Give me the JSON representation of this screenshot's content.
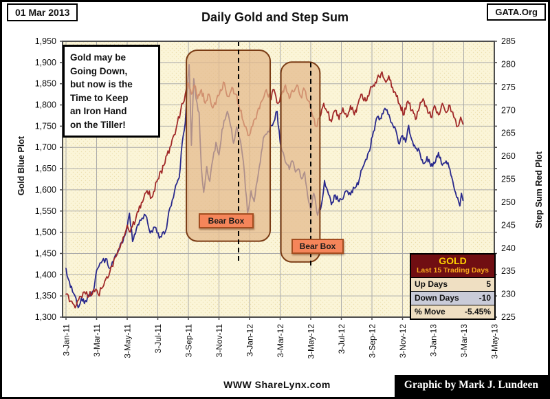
{
  "header": {
    "date_box": "01 Mar 2013",
    "title": "Daily Gold and Step Sum",
    "org_box": "GATA.Org"
  },
  "annotation_note": "Gold may be\nGoing Down,\nbut now is the\nTime to Keep\nan Iron Hand\non the Tiller!",
  "footer": {
    "site": "WWW ShareLynx.com",
    "credit": "Graphic by Mark J. Lundeen"
  },
  "stats_table": {
    "title": "GOLD",
    "subtitle": "Last 15 Trading Days",
    "rows": [
      {
        "label": "Up Days",
        "value": "5"
      },
      {
        "label": "Down Days",
        "value": "-10"
      },
      {
        "label": "% Move",
        "value": "-5.45%"
      }
    ]
  },
  "chart_data": {
    "type": "line",
    "title": "Daily Gold and Step Sum",
    "grid": true,
    "plot_bg": "#FBF5D8",
    "grid_color": "#ABABAB",
    "x_tick_labels": [
      "3-Jan-11",
      "3-Mar-11",
      "3-May-11",
      "3-Jul-11",
      "3-Sep-11",
      "3-Nov-11",
      "3-Jan-12",
      "3-Mar-12",
      "3-May-12",
      "3-Jul-12",
      "3-Sep-12",
      "3-Nov-12",
      "3-Jan-13",
      "3-Mar-13",
      "3-May-13"
    ],
    "left_axis": {
      "label": "Gold Blue Plot",
      "min": 1300,
      "max": 1950,
      "step": 50,
      "tick_labels": [
        "1,300",
        "1,350",
        "1,400",
        "1,450",
        "1,500",
        "1,550",
        "1,600",
        "1,650",
        "1,700",
        "1,750",
        "1,800",
        "1,850",
        "1,900",
        "1,950"
      ]
    },
    "right_axis": {
      "label": "Step Sum Red Plot",
      "min": 225,
      "max": 285,
      "step": 5,
      "tick_labels": [
        "225",
        "230",
        "235",
        "240",
        "245",
        "250",
        "255",
        "260",
        "265",
        "270",
        "275",
        "280",
        "285"
      ]
    },
    "series": [
      {
        "name": "Gold (Blue Plot)",
        "axis": "left",
        "color": "#28288C",
        "points": [
          [
            0.0,
            1415
          ],
          [
            0.15,
            1390
          ],
          [
            0.5,
            1356
          ],
          [
            0.8,
            1322
          ],
          [
            1.0,
            1345
          ],
          [
            1.2,
            1332
          ],
          [
            1.5,
            1352
          ],
          [
            1.8,
            1362
          ],
          [
            2.0,
            1410
          ],
          [
            2.3,
            1428
          ],
          [
            2.6,
            1438
          ],
          [
            2.8,
            1416
          ],
          [
            3.1,
            1432
          ],
          [
            3.4,
            1458
          ],
          [
            3.7,
            1475
          ],
          [
            4.0,
            1512
          ],
          [
            4.15,
            1545
          ],
          [
            4.35,
            1478
          ],
          [
            4.6,
            1508
          ],
          [
            4.9,
            1528
          ],
          [
            5.2,
            1540
          ],
          [
            5.5,
            1498
          ],
          [
            5.8,
            1512
          ],
          [
            6.1,
            1486
          ],
          [
            6.5,
            1502
          ],
          [
            6.8,
            1558
          ],
          [
            7.1,
            1598
          ],
          [
            7.4,
            1628
          ],
          [
            7.6,
            1712
          ],
          [
            7.8,
            1758
          ],
          [
            7.9,
            1826
          ],
          [
            8.05,
            1895
          ],
          [
            8.2,
            1705
          ],
          [
            8.35,
            1862
          ],
          [
            8.5,
            1815
          ],
          [
            8.7,
            1782
          ],
          [
            8.85,
            1652
          ],
          [
            9.0,
            1594
          ],
          [
            9.2,
            1655
          ],
          [
            9.4,
            1620
          ],
          [
            9.6,
            1672
          ],
          [
            9.8,
            1712
          ],
          [
            10.0,
            1682
          ],
          [
            10.2,
            1742
          ],
          [
            10.4,
            1765
          ],
          [
            10.55,
            1785
          ],
          [
            10.75,
            1752
          ],
          [
            10.95,
            1710
          ],
          [
            11.15,
            1748
          ],
          [
            11.35,
            1722
          ],
          [
            11.6,
            1665
          ],
          [
            11.87,
            1545
          ],
          [
            12.1,
            1598
          ],
          [
            12.3,
            1572
          ],
          [
            12.5,
            1620
          ],
          [
            12.7,
            1665
          ],
          [
            12.9,
            1722
          ],
          [
            13.2,
            1738
          ],
          [
            13.5,
            1752
          ],
          [
            13.8,
            1785
          ],
          [
            14.0,
            1712
          ],
          [
            14.2,
            1688
          ],
          [
            14.4,
            1662
          ],
          [
            14.6,
            1648
          ],
          [
            14.8,
            1668
          ],
          [
            15.0,
            1642
          ],
          [
            15.2,
            1650
          ],
          [
            15.4,
            1626
          ],
          [
            15.6,
            1642
          ],
          [
            15.8,
            1585
          ],
          [
            16.0,
            1552
          ],
          [
            16.2,
            1592
          ],
          [
            16.45,
            1540
          ],
          [
            16.7,
            1565
          ],
          [
            16.9,
            1622
          ],
          [
            17.1,
            1598
          ],
          [
            17.35,
            1565
          ],
          [
            17.6,
            1588
          ],
          [
            17.85,
            1572
          ],
          [
            18.1,
            1578
          ],
          [
            18.35,
            1598
          ],
          [
            18.6,
            1588
          ],
          [
            18.85,
            1604
          ],
          [
            19.1,
            1612
          ],
          [
            19.35,
            1648
          ],
          [
            19.6,
            1672
          ],
          [
            19.85,
            1692
          ],
          [
            20.1,
            1738
          ],
          [
            20.35,
            1772
          ],
          [
            20.6,
            1768
          ],
          [
            20.85,
            1792
          ],
          [
            21.05,
            1778
          ],
          [
            21.3,
            1758
          ],
          [
            21.55,
            1742
          ],
          [
            21.8,
            1708
          ],
          [
            22.0,
            1728
          ],
          [
            22.2,
            1712
          ],
          [
            22.4,
            1752
          ],
          [
            22.6,
            1718
          ],
          [
            22.85,
            1698
          ],
          [
            23.1,
            1692
          ],
          [
            23.35,
            1662
          ],
          [
            23.6,
            1678
          ],
          [
            23.85,
            1655
          ],
          [
            24.1,
            1662
          ],
          [
            24.35,
            1688
          ],
          [
            24.6,
            1658
          ],
          [
            24.85,
            1668
          ],
          [
            25.1,
            1648
          ],
          [
            25.35,
            1608
          ],
          [
            25.6,
            1582
          ],
          [
            25.75,
            1562
          ],
          [
            25.85,
            1592
          ],
          [
            25.95,
            1575
          ]
        ]
      },
      {
        "name": "Step Sum (Red Plot)",
        "axis": "right",
        "color": "#A02828",
        "points": [
          [
            0.0,
            230
          ],
          [
            0.3,
            228.5
          ],
          [
            0.6,
            227
          ],
          [
            0.9,
            229.5
          ],
          [
            1.2,
            230.5
          ],
          [
            1.5,
            229.5
          ],
          [
            1.8,
            231
          ],
          [
            2.1,
            230
          ],
          [
            2.4,
            231.5
          ],
          [
            2.8,
            234
          ],
          [
            3.2,
            238
          ],
          [
            3.6,
            241
          ],
          [
            4.0,
            245
          ],
          [
            4.2,
            243.5
          ],
          [
            4.6,
            247
          ],
          [
            5.0,
            250
          ],
          [
            5.3,
            252.5
          ],
          [
            5.6,
            251
          ],
          [
            6.0,
            255
          ],
          [
            6.4,
            258
          ],
          [
            6.8,
            262
          ],
          [
            7.2,
            266
          ],
          [
            7.5,
            270
          ],
          [
            7.8,
            273.5
          ],
          [
            8.0,
            276
          ],
          [
            8.2,
            273.5
          ],
          [
            8.4,
            275.5
          ],
          [
            8.6,
            272.5
          ],
          [
            8.85,
            274.5
          ],
          [
            9.1,
            271.5
          ],
          [
            9.35,
            273.5
          ],
          [
            9.6,
            270.5
          ],
          [
            9.85,
            272.5
          ],
          [
            10.1,
            274.5
          ],
          [
            10.35,
            276
          ],
          [
            10.6,
            273
          ],
          [
            10.85,
            275
          ],
          [
            11.1,
            273.5
          ],
          [
            11.3,
            271
          ],
          [
            11.6,
            267.5
          ],
          [
            11.9,
            264.5
          ],
          [
            12.2,
            266.5
          ],
          [
            12.5,
            269.5
          ],
          [
            12.8,
            272
          ],
          [
            13.1,
            274.5
          ],
          [
            13.35,
            272.5
          ],
          [
            13.6,
            274.5
          ],
          [
            13.85,
            271.5
          ],
          [
            14.1,
            273.5
          ],
          [
            14.35,
            275.5
          ],
          [
            14.6,
            272.5
          ],
          [
            14.85,
            274
          ],
          [
            15.1,
            275.5
          ],
          [
            15.35,
            273
          ],
          [
            15.6,
            274.5
          ],
          [
            15.85,
            272
          ],
          [
            16.1,
            269
          ],
          [
            16.35,
            266.5
          ],
          [
            16.6,
            268.5
          ],
          [
            16.85,
            271.5
          ],
          [
            17.1,
            269.5
          ],
          [
            17.35,
            267.5
          ],
          [
            17.6,
            270
          ],
          [
            17.85,
            268
          ],
          [
            18.1,
            270.5
          ],
          [
            18.35,
            268.5
          ],
          [
            18.6,
            271
          ],
          [
            18.85,
            269
          ],
          [
            19.1,
            271.5
          ],
          [
            19.35,
            273.5
          ],
          [
            19.6,
            272
          ],
          [
            19.85,
            274
          ],
          [
            20.1,
            275.5
          ],
          [
            20.35,
            277
          ],
          [
            20.6,
            278
          ],
          [
            20.85,
            276.5
          ],
          [
            21.1,
            277.5
          ],
          [
            21.35,
            275
          ],
          [
            21.6,
            273
          ],
          [
            21.85,
            271
          ],
          [
            22.1,
            269
          ],
          [
            22.35,
            272
          ],
          [
            22.6,
            270
          ],
          [
            22.85,
            268
          ],
          [
            23.1,
            270.5
          ],
          [
            23.35,
            272.5
          ],
          [
            23.6,
            270.5
          ],
          [
            23.85,
            268.5
          ],
          [
            24.1,
            271
          ],
          [
            24.35,
            269
          ],
          [
            24.6,
            271.5
          ],
          [
            24.85,
            269.5
          ],
          [
            25.1,
            271
          ],
          [
            25.35,
            268.5
          ],
          [
            25.6,
            266.5
          ],
          [
            25.8,
            268.5
          ],
          [
            25.95,
            267
          ]
        ]
      }
    ],
    "bear_boxes": [
      {
        "label": "Bear Box",
        "from_month": 7.87,
        "to_month": 13.35,
        "top_value": 1929,
        "bottom_value": 1479
      },
      {
        "label": "Bear Box",
        "from_month": 14.05,
        "to_month": 16.6,
        "top_value": 1901,
        "bottom_value": 1430
      }
    ],
    "dashed_lines": [
      {
        "month": 11.28,
        "from_value": 1950,
        "to_value": 1432
      },
      {
        "month": 16.0,
        "from_value": 1900,
        "to_value": 1421
      }
    ]
  }
}
